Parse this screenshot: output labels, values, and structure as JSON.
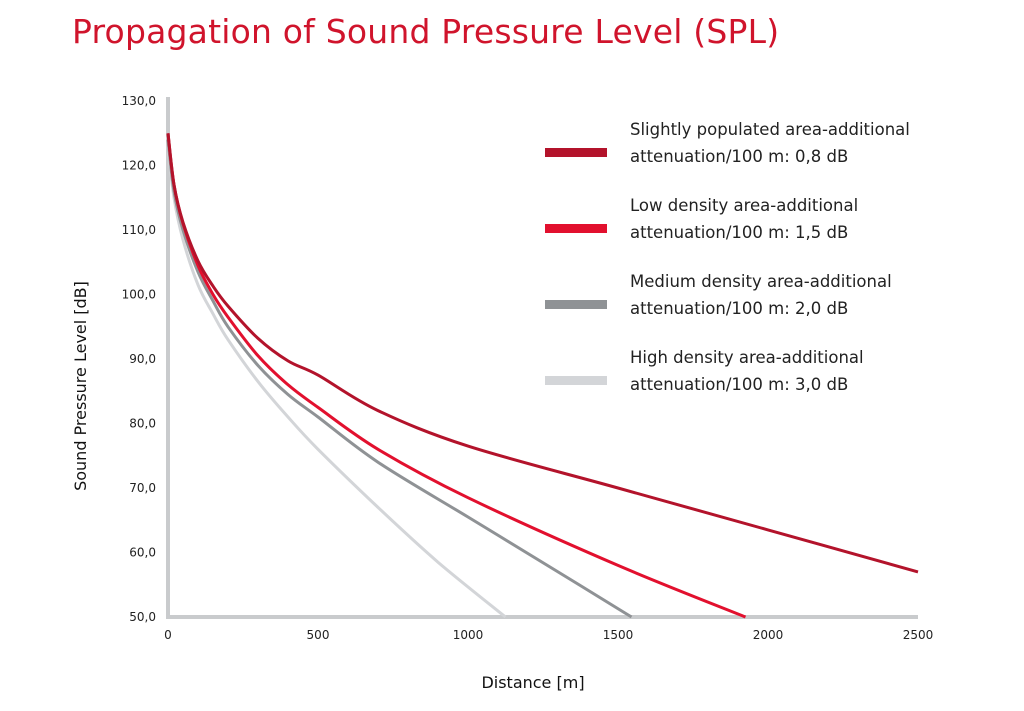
{
  "chart_data": {
    "type": "line",
    "title": "Propagation of Sound Pressure Level (SPL)",
    "xlabel": "Distance [m]",
    "ylabel": "Sound Pressure Level [dB]",
    "xlim": [
      0,
      2500
    ],
    "ylim": [
      50,
      130
    ],
    "x_ticks": [
      "0",
      "500",
      "1000",
      "1500",
      "2000",
      "2500"
    ],
    "y_ticks": [
      "50,0",
      "60,0",
      "70,0",
      "80,0",
      "90,0",
      "100,0",
      "110,0",
      "120,0",
      "130,0"
    ],
    "grid": false,
    "legend_position": "top-right",
    "series": [
      {
        "name_lines": [
          "Slightly populated area-additional",
          "attenuation/100 m: 0,8 dB"
        ],
        "color": "#b3132b",
        "x": [
          0,
          20,
          50,
          100,
          150,
          200,
          300,
          400,
          500,
          700,
          1000,
          1500,
          2000,
          2500
        ],
        "y": [
          125,
          117,
          111.2,
          105.2,
          101.3,
          98.2,
          93.2,
          89.7,
          87.5,
          82,
          76.5,
          70,
          63.5,
          57
        ]
      },
      {
        "name_lines": [
          "Low density area-additional",
          "attenuation/100 m: 1,5 dB"
        ],
        "color": "#e2102e",
        "x": [
          0,
          20,
          50,
          100,
          150,
          200,
          300,
          400,
          500,
          700,
          1000,
          1500,
          1925
        ],
        "y": [
          125,
          117,
          111,
          104.5,
          100,
          96.5,
          90.5,
          86,
          82.5,
          76,
          68.5,
          58,
          50
        ]
      },
      {
        "name_lines": [
          "Medium density area-additional",
          "attenuation/100 m: 2,0 dB"
        ],
        "color": "#8f9295",
        "x": [
          0,
          20,
          50,
          100,
          150,
          200,
          300,
          400,
          500,
          700,
          1000,
          1300,
          1545
        ],
        "y": [
          124,
          116,
          110,
          103.5,
          99,
          95,
          89,
          84.5,
          81,
          74,
          65.5,
          57,
          50
        ]
      },
      {
        "name_lines": [
          "High density area-additional",
          "attenuation/100 m: 3,0 dB"
        ],
        "color": "#d3d5d8",
        "x": [
          0,
          20,
          50,
          100,
          150,
          200,
          300,
          400,
          500,
          700,
          900,
          1125
        ],
        "y": [
          123,
          115,
          108.5,
          101.5,
          97,
          93,
          86.5,
          81,
          76,
          67,
          58.5,
          50
        ]
      }
    ]
  }
}
